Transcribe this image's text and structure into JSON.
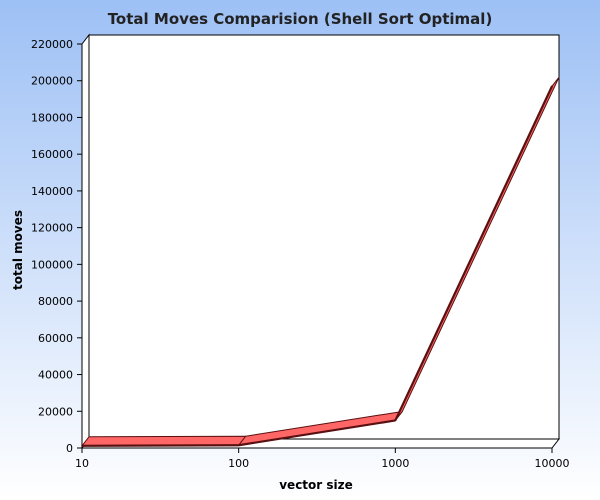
{
  "chart_data": {
    "type": "line",
    "title": "Total Moves Comparision (Shell Sort Optimal)",
    "xlabel": "vector size",
    "ylabel": "total moves",
    "x_scale": "log",
    "categories": [
      "10",
      "100",
      "1000",
      "10000"
    ],
    "x": [
      10,
      100,
      1000,
      10000
    ],
    "values": [
      1200,
      1500,
      15000,
      197000
    ],
    "ylim": [
      0,
      220000
    ],
    "yticks": [
      0,
      20000,
      40000,
      60000,
      80000,
      100000,
      120000,
      140000,
      160000,
      180000,
      200000,
      220000
    ],
    "grid": false,
    "legend": "none",
    "style": "3d-ribbon",
    "colors": {
      "background_top": "#9dc0f5",
      "background_bottom": "#ffffff",
      "series_fill": "#ff6666",
      "series_edge": "#5a1010",
      "plot_background": "#ffffff"
    }
  }
}
